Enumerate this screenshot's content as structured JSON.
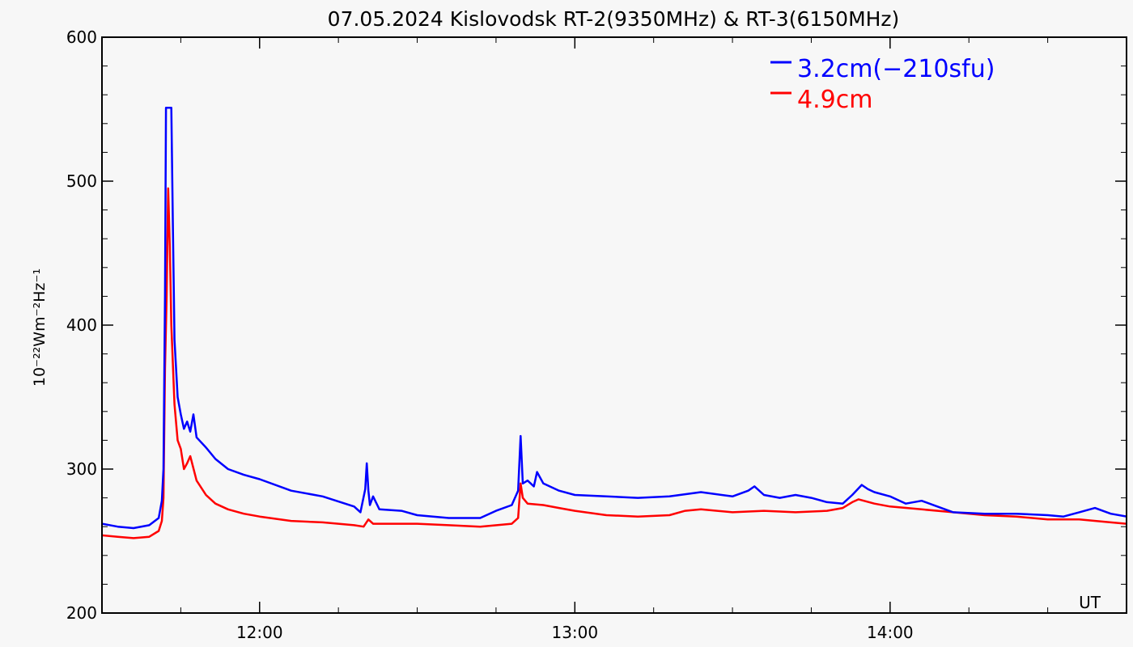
{
  "chart_data": {
    "type": "line",
    "title": "07.05.2024 Kislovodsk RT-2(9350MHz) & RT-3(6150MHz)",
    "xlabel": "UT",
    "ylabel": "10⁻²²Wm⁻²Hz⁻¹",
    "x_unit": "UT (decimal hours)",
    "xlim": [
      11.5,
      14.75
    ],
    "ylim": [
      200,
      600
    ],
    "y_ticks": [
      200,
      300,
      400,
      500,
      600
    ],
    "x_ticks": [
      {
        "value": 12.0,
        "label": "12:00"
      },
      {
        "value": 13.0,
        "label": "13:00"
      },
      {
        "value": 14.0,
        "label": "14:00"
      }
    ],
    "corner_label": "UT",
    "legend_position": "top-right",
    "grid": false,
    "series": [
      {
        "name": "3.2cm(−210sfu)",
        "color": "#0000ff",
        "points": [
          [
            11.5,
            262
          ],
          [
            11.55,
            260
          ],
          [
            11.6,
            259
          ],
          [
            11.65,
            261
          ],
          [
            11.68,
            266
          ],
          [
            11.69,
            278
          ],
          [
            11.695,
            300
          ],
          [
            11.7,
            420
          ],
          [
            11.703,
            551
          ],
          [
            11.72,
            551
          ],
          [
            11.725,
            470
          ],
          [
            11.73,
            390
          ],
          [
            11.74,
            350
          ],
          [
            11.75,
            338
          ],
          [
            11.76,
            328
          ],
          [
            11.77,
            333
          ],
          [
            11.78,
            326
          ],
          [
            11.79,
            338
          ],
          [
            11.8,
            322
          ],
          [
            11.83,
            315
          ],
          [
            11.86,
            307
          ],
          [
            11.9,
            300
          ],
          [
            11.95,
            296
          ],
          [
            12.0,
            293
          ],
          [
            12.1,
            285
          ],
          [
            12.2,
            281
          ],
          [
            12.3,
            274
          ],
          [
            12.32,
            270
          ],
          [
            12.335,
            286
          ],
          [
            12.34,
            304
          ],
          [
            12.345,
            285
          ],
          [
            12.35,
            275
          ],
          [
            12.36,
            281
          ],
          [
            12.38,
            272
          ],
          [
            12.45,
            271
          ],
          [
            12.5,
            268
          ],
          [
            12.6,
            266
          ],
          [
            12.7,
            266
          ],
          [
            12.75,
            271
          ],
          [
            12.8,
            275
          ],
          [
            12.82,
            285
          ],
          [
            12.828,
            323
          ],
          [
            12.835,
            290
          ],
          [
            12.85,
            292
          ],
          [
            12.87,
            288
          ],
          [
            12.88,
            298
          ],
          [
            12.9,
            290
          ],
          [
            12.95,
            285
          ],
          [
            13.0,
            282
          ],
          [
            13.1,
            281
          ],
          [
            13.2,
            280
          ],
          [
            13.3,
            281
          ],
          [
            13.4,
            284
          ],
          [
            13.5,
            281
          ],
          [
            13.55,
            285
          ],
          [
            13.57,
            288
          ],
          [
            13.6,
            282
          ],
          [
            13.65,
            280
          ],
          [
            13.7,
            282
          ],
          [
            13.75,
            280
          ],
          [
            13.8,
            277
          ],
          [
            13.85,
            276
          ],
          [
            13.88,
            282
          ],
          [
            13.91,
            289
          ],
          [
            13.93,
            286
          ],
          [
            13.95,
            284
          ],
          [
            14.0,
            281
          ],
          [
            14.05,
            276
          ],
          [
            14.1,
            278
          ],
          [
            14.15,
            274
          ],
          [
            14.2,
            270
          ],
          [
            14.3,
            269
          ],
          [
            14.4,
            269
          ],
          [
            14.5,
            268
          ],
          [
            14.55,
            267
          ],
          [
            14.6,
            270
          ],
          [
            14.65,
            273
          ],
          [
            14.7,
            269
          ],
          [
            14.75,
            267
          ]
        ]
      },
      {
        "name": "4.9cm",
        "color": "#ff0000",
        "points": [
          [
            11.5,
            254
          ],
          [
            11.55,
            253
          ],
          [
            11.6,
            252
          ],
          [
            11.65,
            253
          ],
          [
            11.68,
            257
          ],
          [
            11.69,
            264
          ],
          [
            11.695,
            280
          ],
          [
            11.7,
            370
          ],
          [
            11.705,
            420
          ],
          [
            11.71,
            495
          ],
          [
            11.715,
            455
          ],
          [
            11.72,
            400
          ],
          [
            11.73,
            345
          ],
          [
            11.74,
            320
          ],
          [
            11.75,
            314
          ],
          [
            11.76,
            300
          ],
          [
            11.77,
            304
          ],
          [
            11.78,
            309
          ],
          [
            11.8,
            292
          ],
          [
            11.83,
            282
          ],
          [
            11.86,
            276
          ],
          [
            11.9,
            272
          ],
          [
            11.95,
            269
          ],
          [
            12.0,
            267
          ],
          [
            12.1,
            264
          ],
          [
            12.2,
            263
          ],
          [
            12.3,
            261
          ],
          [
            12.33,
            260
          ],
          [
            12.345,
            265
          ],
          [
            12.36,
            262
          ],
          [
            12.45,
            262
          ],
          [
            12.5,
            262
          ],
          [
            12.6,
            261
          ],
          [
            12.7,
            260
          ],
          [
            12.8,
            262
          ],
          [
            12.82,
            266
          ],
          [
            12.828,
            290
          ],
          [
            12.835,
            280
          ],
          [
            12.85,
            276
          ],
          [
            12.9,
            275
          ],
          [
            12.95,
            273
          ],
          [
            13.0,
            271
          ],
          [
            13.1,
            268
          ],
          [
            13.2,
            267
          ],
          [
            13.3,
            268
          ],
          [
            13.35,
            271
          ],
          [
            13.4,
            272
          ],
          [
            13.5,
            270
          ],
          [
            13.6,
            271
          ],
          [
            13.7,
            270
          ],
          [
            13.8,
            271
          ],
          [
            13.85,
            273
          ],
          [
            13.88,
            277
          ],
          [
            13.9,
            279
          ],
          [
            13.95,
            276
          ],
          [
            14.0,
            274
          ],
          [
            14.1,
            272
          ],
          [
            14.2,
            270
          ],
          [
            14.3,
            268
          ],
          [
            14.4,
            267
          ],
          [
            14.5,
            265
          ],
          [
            14.6,
            265
          ],
          [
            14.7,
            263
          ],
          [
            14.75,
            262
          ]
        ]
      }
    ]
  }
}
